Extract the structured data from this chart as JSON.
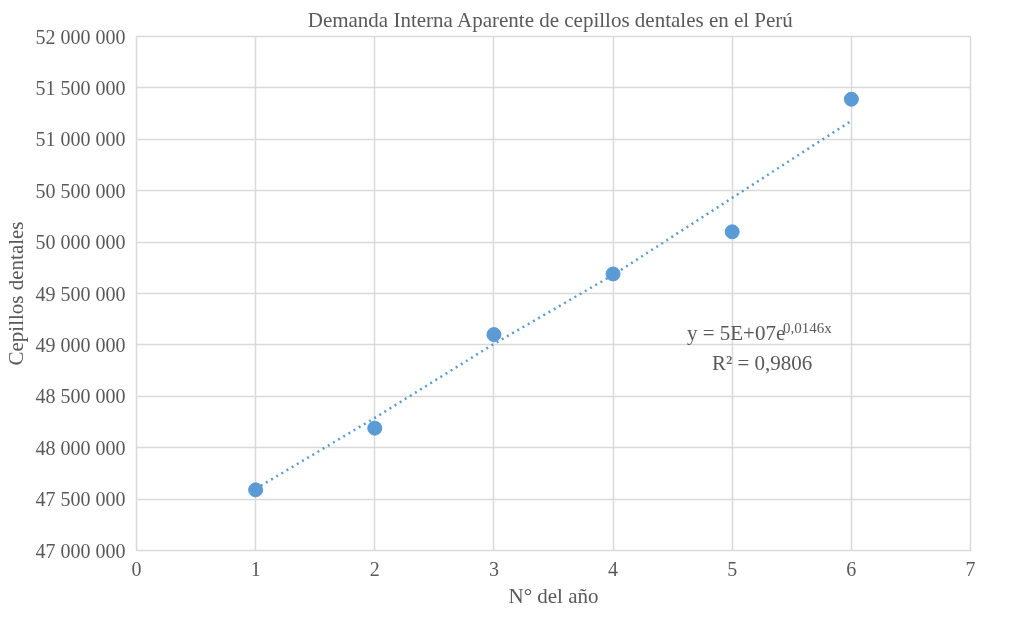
{
  "chart_data": {
    "type": "scatter",
    "title": "Demanda Interna  Aparente de cepillos dentales en el Perú",
    "xlabel": "N° del año",
    "ylabel": "Cepillos dentales",
    "xlim": [
      0,
      7
    ],
    "xticks": [
      0,
      1,
      2,
      3,
      4,
      5,
      6,
      7
    ],
    "ylim": [
      47000000,
      52000000
    ],
    "yticks": [
      {
        "value": 47000000,
        "label": "47 000 000"
      },
      {
        "value": 47500000,
        "label": "47 500 000"
      },
      {
        "value": 48000000,
        "label": "48 000 000"
      },
      {
        "value": 48500000,
        "label": "48 500 000"
      },
      {
        "value": 49000000,
        "label": "49 000 000"
      },
      {
        "value": 49500000,
        "label": "49 500 000"
      },
      {
        "value": 50000000,
        "label": "50 000 000"
      },
      {
        "value": 50500000,
        "label": "50 500 000"
      },
      {
        "value": 51000000,
        "label": "51 000 000"
      },
      {
        "value": 51500000,
        "label": "51 500 000"
      },
      {
        "value": 52000000,
        "label": "52 000 000"
      }
    ],
    "grid": true,
    "series": [
      {
        "marker": "circle",
        "color": "#5b9bd5",
        "x": [
          1,
          2,
          3,
          4,
          5,
          6
        ],
        "values": [
          47590000,
          48190000,
          49100000,
          49690000,
          50100000,
          51390000
        ]
      },
      {
        "type": "line",
        "marker": "none",
        "line_style": "dotted",
        "color": "#5b9bd5",
        "x": [
          1,
          2,
          3,
          4,
          5,
          6
        ],
        "values": [
          47600000,
          48290000,
          49010000,
          49680000,
          50430000,
          51180000
        ]
      }
    ],
    "annotations": [
      "y = 5E+07e$^{0,0146x}$",
      "R² = 0,9806"
    ]
  }
}
